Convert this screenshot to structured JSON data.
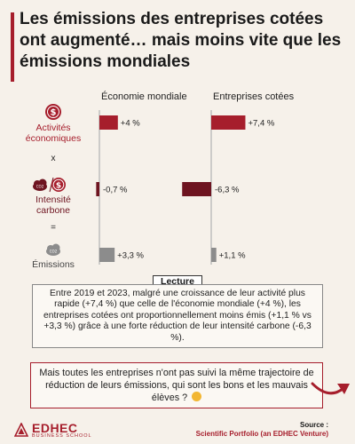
{
  "title": "Les émissions des entreprises cotées ont augmenté… mais moins vite que les émissions mondiales",
  "colors": {
    "activity": "#a61e2c",
    "intensity": "#6e1420",
    "emissions": "#8c8c8c",
    "accent": "#a61e2c"
  },
  "row_labels": {
    "activity": [
      "Activités",
      "économiques"
    ],
    "times": "x",
    "intensity": [
      "Intensité",
      "carbone"
    ],
    "equals": "=",
    "emissions": [
      "Émissions"
    ]
  },
  "icons": {
    "activity": "dollar-coin-icon",
    "intensity": "co2-cloud-and-coin-icon",
    "emissions": "co2-cloud-icon"
  },
  "chart_data": {
    "type": "bar",
    "orientation": "horizontal",
    "categories": [
      "Activités économiques",
      "Intensité carbone",
      "Émissions"
    ],
    "panels": [
      {
        "title": "Économie mondiale",
        "values": [
          4.0,
          -0.7,
          3.3
        ],
        "labels": [
          "+4 %",
          "-0,7 %",
          "+3,3 %"
        ]
      },
      {
        "title": "Entreprises cotées",
        "values": [
          7.4,
          -6.3,
          1.1
        ],
        "labels": [
          "+7,4 %",
          "-6,3 %",
          "+1,1 %"
        ]
      }
    ],
    "unit": "%"
  },
  "lecture": {
    "tag": "Lecture",
    "text": "Entre 2019 et 2023, malgré une croissance de leur activité plus rapide (+7,4 %) que celle de l'économie mondiale (+4 %), les entreprises cotées ont proportionnellement moins émis (+1,1 % vs +3,3 %) grâce à une forte réduction de leur intensité carbone (-6,3 %)."
  },
  "cta": {
    "text": "Mais toutes les entreprises n'ont pas suivi la même trajectoire de réduction de leurs émissions, qui sont les bons et les mauvais élèves ?"
  },
  "logo": {
    "name": "EDHEC",
    "sub": "BUSINESS SCHOOL"
  },
  "source": {
    "label": "Source :",
    "value": "Scientific Portfolio (an EDHEC Venture)"
  }
}
